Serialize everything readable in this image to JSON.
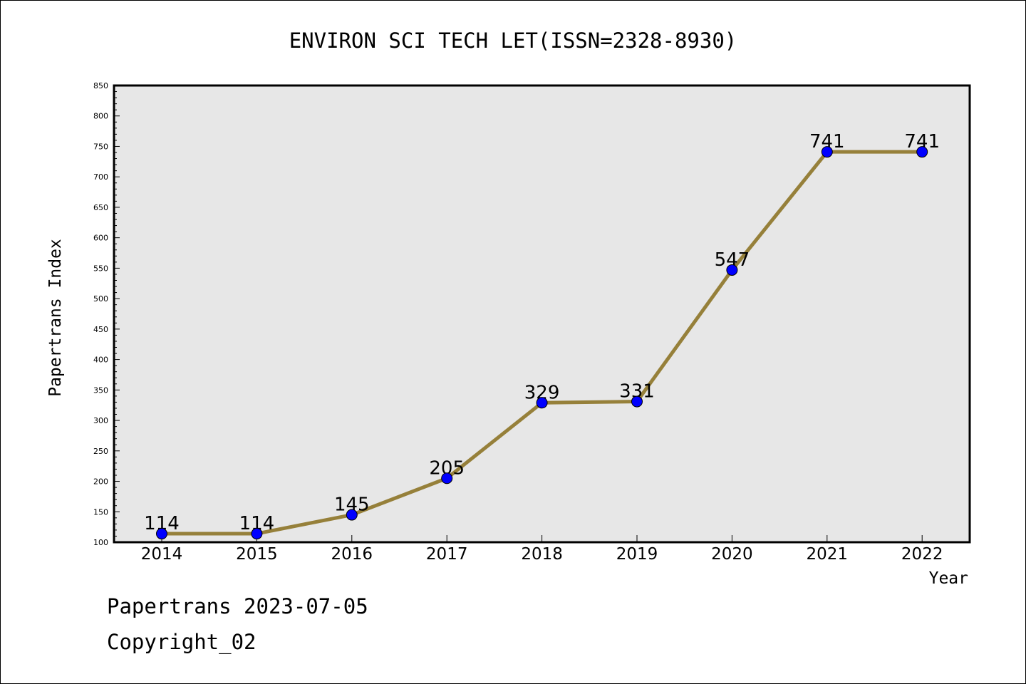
{
  "chart_data": {
    "type": "line",
    "title": "ENVIRON SCI TECH LET(ISSN=2328-8930)",
    "xlabel": "Year",
    "ylabel": "Papertrans Index",
    "categories": [
      "2014",
      "2015",
      "2016",
      "2017",
      "2018",
      "2019",
      "2020",
      "2021",
      "2022"
    ],
    "series": [
      {
        "values": [
          114,
          114,
          145,
          205,
          329,
          331,
          547,
          741,
          741
        ]
      }
    ],
    "data_labels": [
      "114",
      "114",
      "145",
      "205",
      "329",
      "331",
      "547",
      "741",
      "741"
    ],
    "ylim": [
      100,
      850
    ],
    "yticks": [
      "100",
      "150",
      "200",
      "250",
      "300",
      "350",
      "400",
      "450",
      "500",
      "550",
      "600",
      "650",
      "700",
      "750",
      "800",
      "850"
    ],
    "grid": false,
    "legend": "none",
    "colors": {
      "line": "#96803A",
      "marker": "#0000FF",
      "plot_background": "#E7E7E7"
    }
  },
  "footer": {
    "date_line": "Papertrans 2023-07-05",
    "copyright": "Copyright_02"
  }
}
